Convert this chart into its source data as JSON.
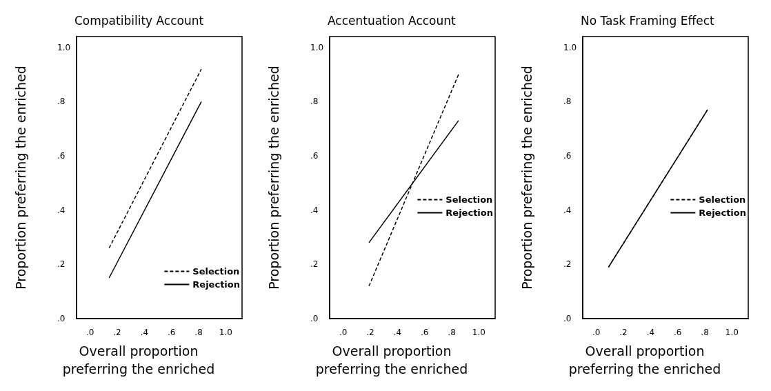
{
  "chart_data": [
    {
      "type": "line",
      "title": "Compatibility Account",
      "xlabel": "Overall proportion\npreferring the enriched",
      "ylabel": "Proportion preferring the enriched",
      "xlim": [
        -0.1,
        1.12
      ],
      "ylim": [
        0,
        1.04
      ],
      "xticks": [
        {
          "value": 0,
          "label": ".0"
        },
        {
          "value": 0.2,
          "label": ".2"
        },
        {
          "value": 0.4,
          "label": ".4"
        },
        {
          "value": 0.6,
          "label": ".6"
        },
        {
          "value": 0.8,
          "label": ".8"
        },
        {
          "value": 1,
          "label": "1.0"
        }
      ],
      "yticks": [
        {
          "value": 0,
          "label": ".0"
        },
        {
          "value": 0.2,
          "label": ".2"
        },
        {
          "value": 0.4,
          "label": ".4"
        },
        {
          "value": 0.6,
          "label": ".6"
        },
        {
          "value": 0.8,
          "label": ".8"
        },
        {
          "value": 1,
          "label": "1.0"
        }
      ],
      "series": [
        {
          "name": "Selection",
          "color": "#000000",
          "line_style": "dashed",
          "x": [
            0.14,
            0.82
          ],
          "values": [
            0.26,
            0.92
          ]
        },
        {
          "name": "Rejection",
          "color": "#000000",
          "line_style": "solid",
          "x": [
            0.14,
            0.82
          ],
          "values": [
            0.15,
            0.8
          ]
        }
      ],
      "marker": "none",
      "grid": false,
      "legend": "bottom right"
    },
    {
      "type": "line",
      "title": "Accentuation Account",
      "xlabel": "Overall proportion\npreferring the enriched",
      "ylabel": "Proportion preferring the enriched",
      "xlim": [
        -0.1,
        1.12
      ],
      "ylim": [
        0,
        1.04
      ],
      "xticks": [
        {
          "value": 0,
          "label": ".0"
        },
        {
          "value": 0.2,
          "label": ".2"
        },
        {
          "value": 0.4,
          "label": ".4"
        },
        {
          "value": 0.6,
          "label": ".6"
        },
        {
          "value": 0.8,
          "label": ".8"
        },
        {
          "value": 1,
          "label": "1.0"
        }
      ],
      "yticks": [
        {
          "value": 0,
          "label": ".0"
        },
        {
          "value": 0.2,
          "label": ".2"
        },
        {
          "value": 0.4,
          "label": ".4"
        },
        {
          "value": 0.6,
          "label": ".6"
        },
        {
          "value": 0.8,
          "label": ".8"
        },
        {
          "value": 1,
          "label": "1.0"
        }
      ],
      "series": [
        {
          "name": "Selection",
          "color": "#000000",
          "line_style": "dashed",
          "x": [
            0.19,
            0.85
          ],
          "values": [
            0.12,
            0.9
          ]
        },
        {
          "name": "Rejection",
          "color": "#000000",
          "line_style": "solid",
          "x": [
            0.19,
            0.85
          ],
          "values": [
            0.28,
            0.73
          ]
        }
      ],
      "marker": "none",
      "grid": false,
      "legend": "right"
    },
    {
      "type": "line",
      "title": "No Task Framing Effect",
      "xlabel": "Overall proportion\npreferring the enriched",
      "ylabel": "Proportion preferring the enriched",
      "xlim": [
        -0.1,
        1.12
      ],
      "ylim": [
        0,
        1.04
      ],
      "xticks": [
        {
          "value": 0,
          "label": ".0"
        },
        {
          "value": 0.2,
          "label": ".2"
        },
        {
          "value": 0.4,
          "label": ".4"
        },
        {
          "value": 0.6,
          "label": ".6"
        },
        {
          "value": 0.8,
          "label": ".8"
        },
        {
          "value": 1,
          "label": "1.0"
        }
      ],
      "yticks": [
        {
          "value": 0,
          "label": ".0"
        },
        {
          "value": 0.2,
          "label": ".2"
        },
        {
          "value": 0.4,
          "label": ".4"
        },
        {
          "value": 0.6,
          "label": ".6"
        },
        {
          "value": 0.8,
          "label": ".8"
        },
        {
          "value": 1,
          "label": "1.0"
        }
      ],
      "series": [
        {
          "name": "Selection",
          "color": "#000000",
          "line_style": "dashed",
          "x": [
            0.09,
            0.82
          ],
          "values": [
            0.19,
            0.77
          ]
        },
        {
          "name": "Rejection",
          "color": "#000000",
          "line_style": "solid",
          "x": [
            0.09,
            0.82
          ],
          "values": [
            0.19,
            0.77
          ]
        }
      ],
      "marker": "none",
      "grid": false,
      "legend": "right"
    }
  ]
}
